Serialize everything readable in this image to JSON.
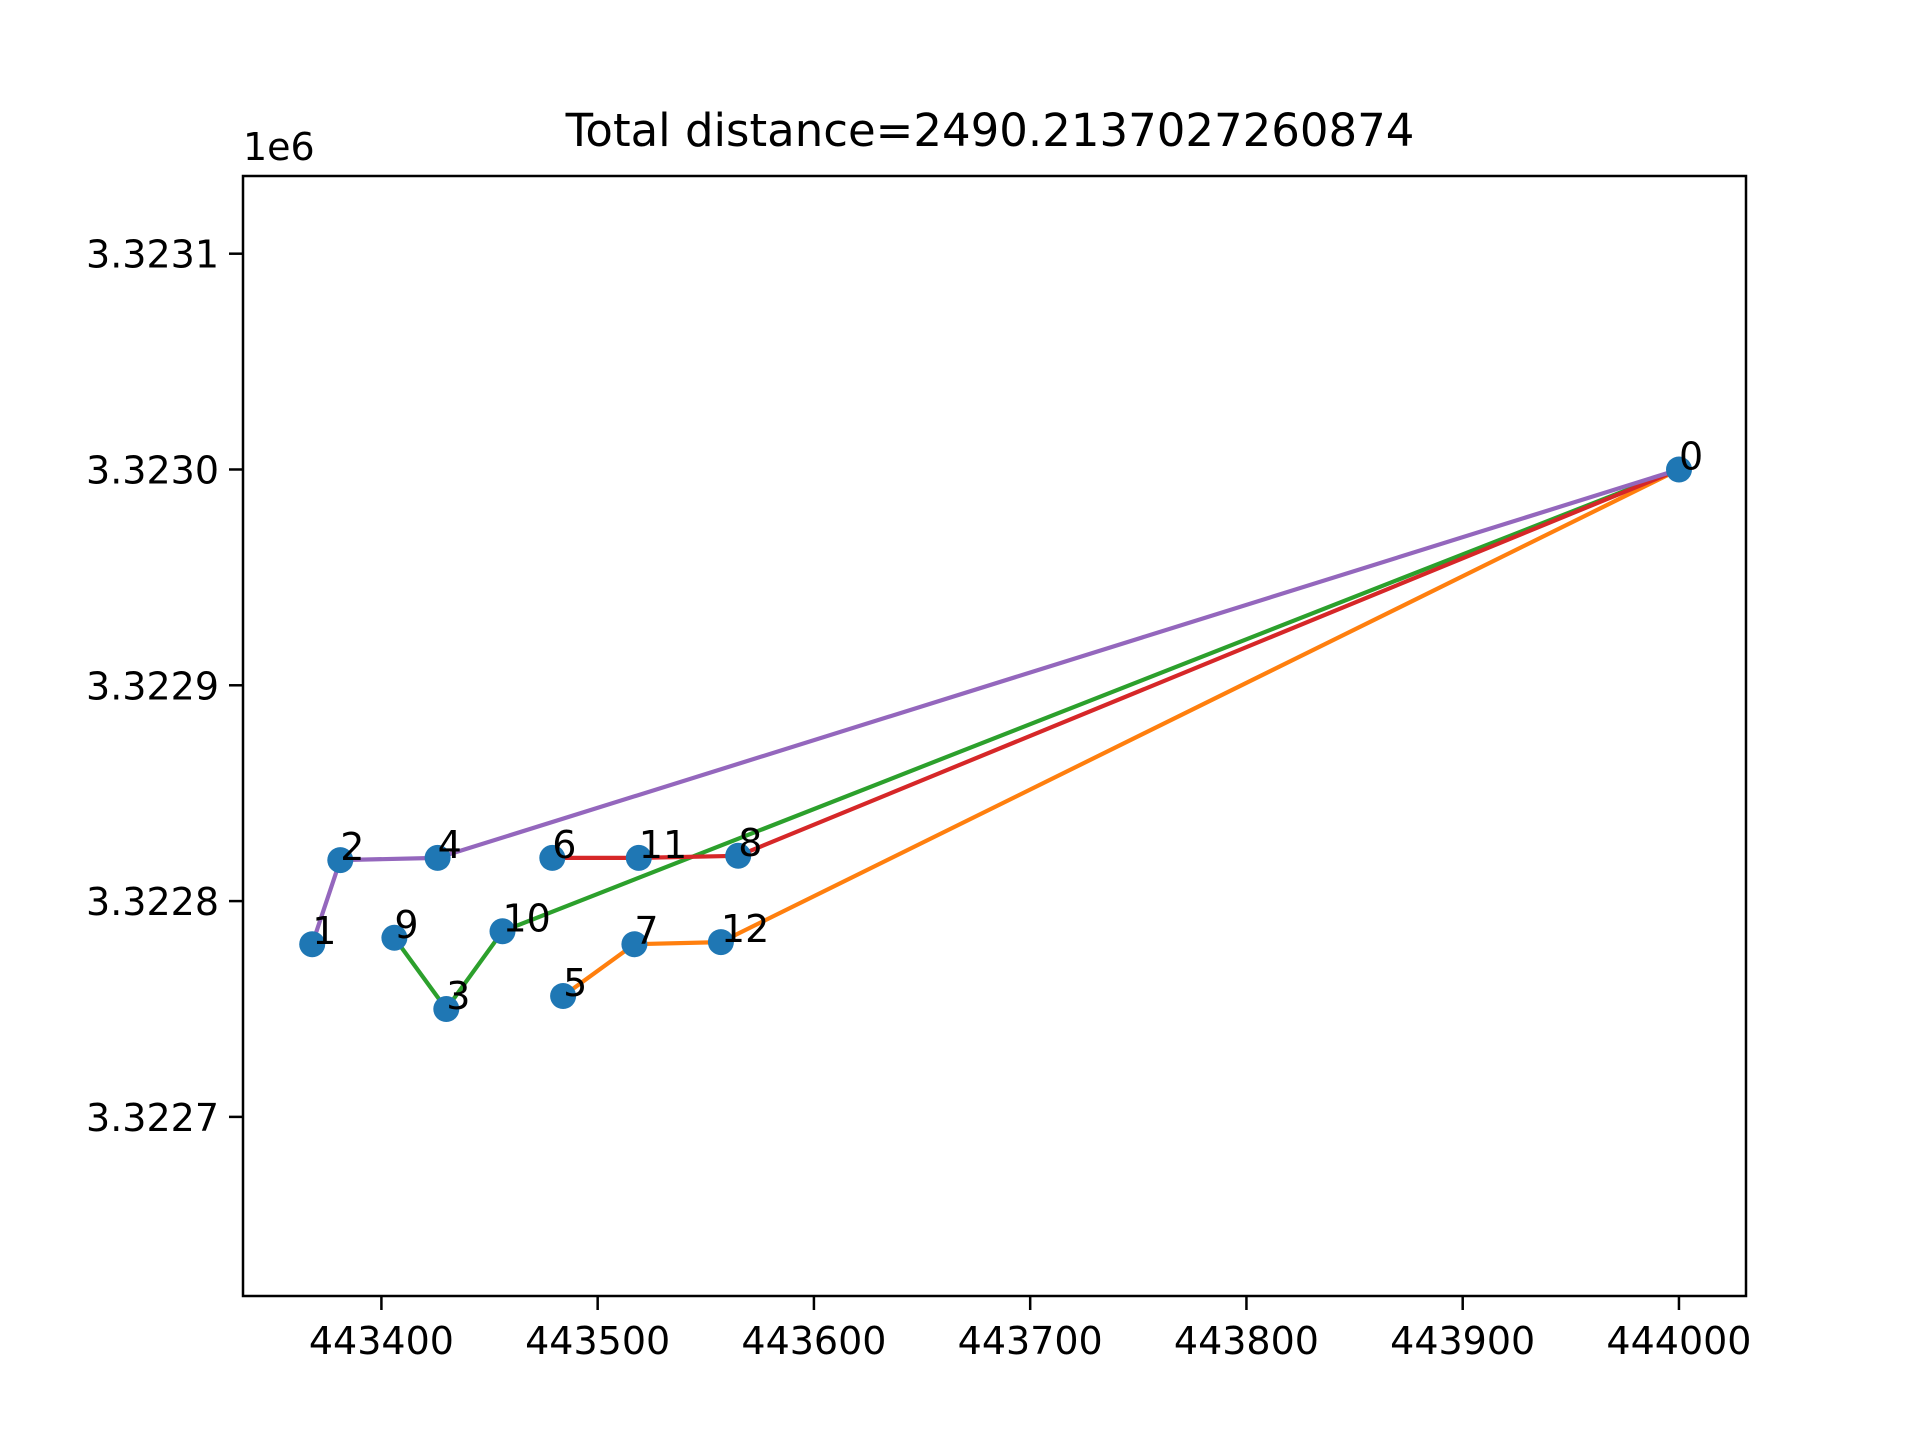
{
  "chart_data": {
    "type": "line",
    "title": "Total distance=2490.2137027260874",
    "xlabel": "",
    "ylabel": "",
    "y_offset_label": "1e6",
    "xlim": [
      443336,
      444031
    ],
    "ylim": [
      3322617,
      3323136
    ],
    "x_ticks": [
      443400,
      443500,
      443600,
      443700,
      443800,
      443900,
      444000
    ],
    "x_tick_labels": [
      "443400",
      "443500",
      "443600",
      "443700",
      "443800",
      "443900",
      "444000"
    ],
    "y_ticks": [
      3322700,
      3322800,
      3322900,
      3323000,
      3323100
    ],
    "y_tick_labels": [
      "3.3227",
      "3.3228",
      "3.3229",
      "3.3230",
      "3.3231"
    ],
    "grid": false,
    "legend": "none",
    "point_color": "#1f77b4",
    "points": [
      {
        "id": "0",
        "x": 444000,
        "y": 3323000
      },
      {
        "id": "1",
        "x": 443368,
        "y": 3322780
      },
      {
        "id": "2",
        "x": 443381,
        "y": 3322819
      },
      {
        "id": "3",
        "x": 443430,
        "y": 3322750
      },
      {
        "id": "4",
        "x": 443426,
        "y": 3322820
      },
      {
        "id": "5",
        "x": 443484,
        "y": 3322756
      },
      {
        "id": "6",
        "x": 443479,
        "y": 3322820
      },
      {
        "id": "7",
        "x": 443517,
        "y": 3322780
      },
      {
        "id": "8",
        "x": 443565,
        "y": 3322821
      },
      {
        "id": "9",
        "x": 443406,
        "y": 3322783
      },
      {
        "id": "10",
        "x": 443456,
        "y": 3322786
      },
      {
        "id": "11",
        "x": 443519,
        "y": 3322820
      },
      {
        "id": "12",
        "x": 443557,
        "y": 3322781
      }
    ],
    "routes": [
      {
        "color": "#ff7f0e",
        "path": [
          "0",
          "12",
          "7",
          "5"
        ]
      },
      {
        "color": "#2ca02c",
        "path": [
          "0",
          "10",
          "3",
          "9"
        ]
      },
      {
        "color": "#d62728",
        "path": [
          "0",
          "8",
          "11",
          "6"
        ]
      },
      {
        "color": "#9467bd",
        "path": [
          "0",
          "4",
          "2",
          "1"
        ]
      }
    ]
  }
}
